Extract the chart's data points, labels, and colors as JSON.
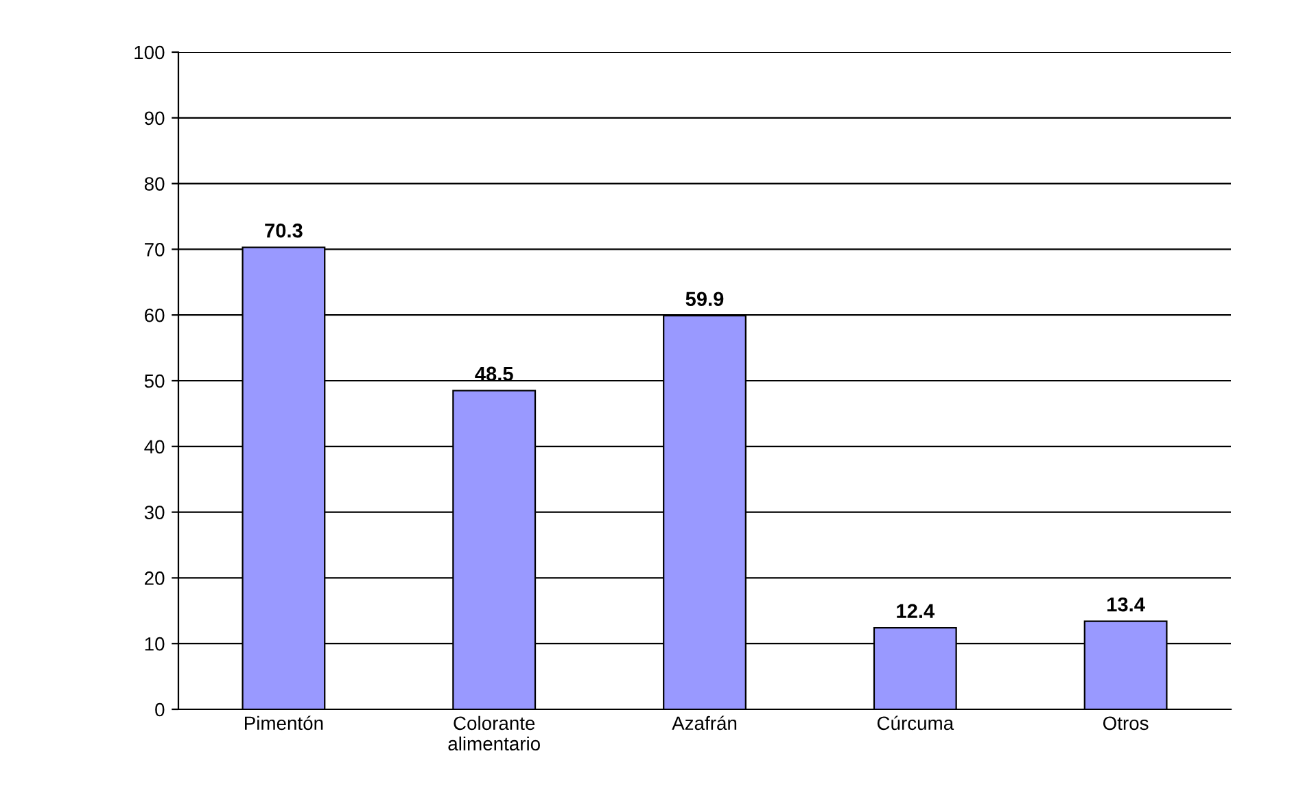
{
  "chart_data": {
    "type": "bar",
    "categories": [
      "Pimentón",
      "Colorante\nalimentario",
      "Azafrán",
      "Cúrcuma",
      "Otros"
    ],
    "values": [
      70.3,
      48.5,
      59.9,
      12.4,
      13.4
    ],
    "color": "#9999ff",
    "ylim": [
      0,
      100
    ],
    "yticks": [
      0,
      10,
      20,
      30,
      40,
      50,
      60,
      70,
      80,
      90,
      100
    ],
    "grid": "y",
    "data_labels": true
  }
}
